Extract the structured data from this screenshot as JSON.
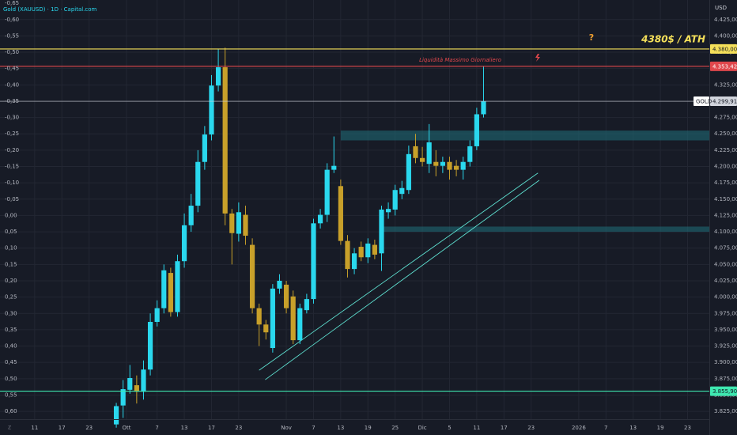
{
  "chart_data": {
    "type": "candlestick",
    "title": "Gold (XAUUSD) · 1D · Capital.com",
    "currency": "USD",
    "symbol_tag": "GOLD",
    "up_color": "#2ad8ee",
    "down_color": "#c8a02a",
    "open": [
      3805,
      3834,
      3858,
      3865,
      3855,
      3889,
      3962,
      3983,
      4037,
      3977,
      4055,
      4110,
      4140,
      4207,
      4249,
      4324,
      4352,
      4128,
      4097,
      4126,
      4080,
      3983,
      3958,
      3922,
      4013,
      4019,
      4001,
      3934,
      3980,
      3997,
      4113,
      4126,
      4195,
      4170,
      4086,
      4043,
      4077,
      4061,
      4080,
      4067,
      4130,
      4134,
      4158,
      4164,
      4231,
      4213,
      4204,
      4207,
      4201,
      4207,
      4201,
      4195,
      4207,
      4231,
      4280
    ],
    "high": [
      3838,
      3873,
      3896,
      3880,
      3903,
      3975,
      3995,
      4050,
      4045,
      4065,
      4128,
      4158,
      4225,
      4262,
      4340,
      4380,
      4382,
      4135,
      4145,
      4140,
      4090,
      3990,
      3965,
      4020,
      4035,
      4025,
      4010,
      3990,
      4005,
      4120,
      4135,
      4205,
      4246,
      4180,
      4095,
      4075,
      4085,
      4090,
      4088,
      4140,
      4145,
      4172,
      4178,
      4232,
      4250,
      4230,
      4265,
      4225,
      4215,
      4215,
      4210,
      4215,
      4240,
      4290,
      4353.42
    ],
    "low": [
      3800,
      3815,
      3852,
      3837,
      3843,
      3880,
      3955,
      3975,
      3970,
      3970,
      4045,
      4100,
      4130,
      4195,
      4240,
      4315,
      4110,
      4050,
      4085,
      4080,
      3975,
      3925,
      3935,
      3915,
      4005,
      3975,
      3928,
      3928,
      3975,
      3990,
      4105,
      4115,
      4190,
      4080,
      4030,
      4035,
      4055,
      4052,
      4058,
      4040,
      4120,
      4125,
      4150,
      4158,
      4205,
      4200,
      4190,
      4185,
      4190,
      4180,
      4185,
      4180,
      4200,
      4225,
      4275
    ],
    "close": [
      3833,
      3859,
      3876,
      3855,
      3889,
      3962,
      3983,
      4041,
      3977,
      4055,
      4110,
      4140,
      4207,
      4249,
      4324,
      4352,
      4128,
      4098,
      4130,
      4094,
      3983,
      3958,
      3946,
      4013,
      4025,
      3983,
      3934,
      3983,
      3997,
      4113,
      4126,
      4195,
      4201,
      4086,
      4043,
      4067,
      4061,
      4082,
      4065,
      4134,
      4135,
      4164,
      4167,
      4219,
      4213,
      4207,
      4237,
      4201,
      4207,
      4195,
      4195,
      4207,
      4231,
      4280,
      4300
    ],
    "xlim": [
      -17.1,
      87.2
    ],
    "xticks": [
      {
        "value": -12,
        "label": "11"
      },
      {
        "value": -8,
        "label": "17"
      },
      {
        "value": -4,
        "label": "23"
      },
      {
        "value": 1.5,
        "label": "Ott"
      },
      {
        "value": 6,
        "label": "7"
      },
      {
        "value": 10,
        "label": "13"
      },
      {
        "value": 14,
        "label": "17"
      },
      {
        "value": 18,
        "label": "23"
      },
      {
        "value": 25,
        "label": "Nov"
      },
      {
        "value": 29,
        "label": "7"
      },
      {
        "value": 33,
        "label": "13"
      },
      {
        "value": 37,
        "label": "19"
      },
      {
        "value": 41,
        "label": "25"
      },
      {
        "value": 45,
        "label": "Dic"
      },
      {
        "value": 49,
        "label": "5"
      },
      {
        "value": 53,
        "label": "11"
      },
      {
        "value": 57,
        "label": "17"
      },
      {
        "value": 61,
        "label": "23"
      },
      {
        "value": 68,
        "label": "2026"
      },
      {
        "value": 72,
        "label": "7"
      },
      {
        "value": 76,
        "label": "13"
      },
      {
        "value": 80,
        "label": "19"
      },
      {
        "value": 84,
        "label": "23"
      }
    ],
    "ylim": [
      3813,
      4455
    ],
    "yticks": [
      {
        "value": 4425,
        "label": "4.425,00"
      },
      {
        "value": 4400,
        "label": "4.400,00"
      },
      {
        "value": 4375,
        "label": "4.375,00"
      },
      {
        "value": 4350,
        "label": "4.350,00"
      },
      {
        "value": 4325,
        "label": "4.325,00"
      },
      {
        "value": 4300,
        "label": "4.300,00"
      },
      {
        "value": 4275,
        "label": "4.275,00"
      },
      {
        "value": 4250,
        "label": "4.250,00"
      },
      {
        "value": 4225,
        "label": "4.225,00"
      },
      {
        "value": 4200,
        "label": "4.200,00"
      },
      {
        "value": 4175,
        "label": "4.175,00"
      },
      {
        "value": 4150,
        "label": "4.150,00"
      },
      {
        "value": 4125,
        "label": "4.125,00"
      },
      {
        "value": 4100,
        "label": "4.100,00"
      },
      {
        "value": 4075,
        "label": "4.075,00"
      },
      {
        "value": 4050,
        "label": "4.050,00"
      },
      {
        "value": 4025,
        "label": "4.025,00"
      },
      {
        "value": 4000,
        "label": "4.000,00"
      },
      {
        "value": 3975,
        "label": "3.975,00"
      },
      {
        "value": 3950,
        "label": "3.950,00"
      },
      {
        "value": 3925,
        "label": "3.925,00"
      },
      {
        "value": 3900,
        "label": "3.900,00"
      },
      {
        "value": 3875,
        "label": "3.875,00"
      },
      {
        "value": 3850,
        "label": "3.850,00"
      },
      {
        "value": 3825,
        "label": "3.825,00"
      }
    ],
    "y2lim": [
      -0.66,
      0.624
    ],
    "y2ticks": [
      {
        "value": -0.65,
        "label": "-0,65"
      },
      {
        "value": -0.6,
        "label": "-0,60"
      },
      {
        "value": -0.55,
        "label": "-0,55"
      },
      {
        "value": -0.5,
        "label": "-0,50"
      },
      {
        "value": -0.45,
        "label": "-0,45"
      },
      {
        "value": -0.4,
        "label": "-0,40"
      },
      {
        "value": -0.35,
        "label": "-0,35"
      },
      {
        "value": -0.3,
        "label": "-0,30"
      },
      {
        "value": -0.25,
        "label": "-0,25"
      },
      {
        "value": -0.2,
        "label": "-0,20"
      },
      {
        "value": -0.15,
        "label": "-0,15"
      },
      {
        "value": -0.1,
        "label": "-0,10"
      },
      {
        "value": -0.05,
        "label": "-0,05"
      },
      {
        "value": 0,
        "label": "0,00"
      },
      {
        "value": 0.05,
        "label": "0,05"
      },
      {
        "value": 0.1,
        "label": "0,10"
      },
      {
        "value": 0.15,
        "label": "0,15"
      },
      {
        "value": 0.2,
        "label": "0,20"
      },
      {
        "value": 0.25,
        "label": "0,25"
      },
      {
        "value": 0.3,
        "label": "0,30"
      },
      {
        "value": 0.35,
        "label": "0,35"
      },
      {
        "value": 0.4,
        "label": "0,40"
      },
      {
        "value": 0.45,
        "label": "0,45"
      },
      {
        "value": 0.5,
        "label": "0,50"
      },
      {
        "value": 0.55,
        "label": "0,55"
      },
      {
        "value": 0.6,
        "label": "0,60"
      }
    ],
    "levels": [
      {
        "value": 4380,
        "label": "4.380,00",
        "color": "#f5e05a"
      },
      {
        "value": 4353.42,
        "label": "4.353,42",
        "color": "#e0474c"
      },
      {
        "value": 4299.91,
        "label": "4.299,91",
        "color": "#d1d4dc"
      },
      {
        "value": 3855.9,
        "label": "3.855,90",
        "color": "#3ee8b0"
      }
    ],
    "zones": [
      {
        "from": 4240,
        "to": 4255,
        "start": 33
      },
      {
        "from": 4100,
        "to": 4108,
        "start": 39.3
      }
    ],
    "trendlines": [
      {
        "x": [
          21,
          62
        ],
        "y": [
          3888,
          4190
        ]
      },
      {
        "x": [
          21.9,
          62.2
        ],
        "y": [
          3873.5,
          4179
        ]
      }
    ],
    "annotations": {
      "liquidity": "Liquidità Massimo Giornaliero",
      "question": "?",
      "ath": "4380$ / ATH"
    }
  }
}
